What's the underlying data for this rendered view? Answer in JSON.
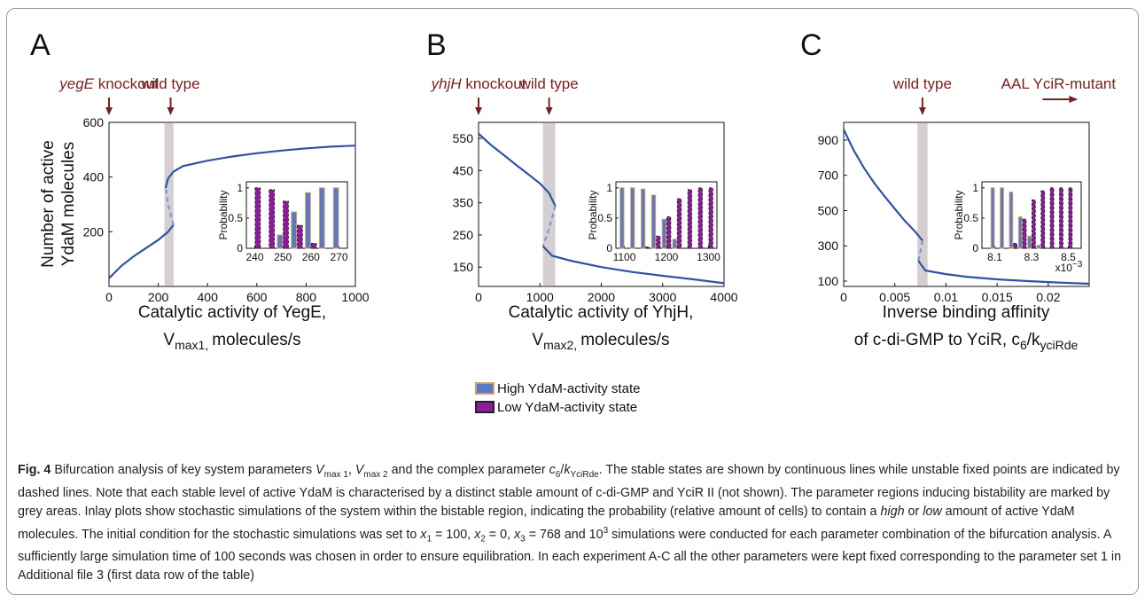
{
  "chart_data": [
    {
      "panel": "A",
      "type": "line",
      "xlabel_line1": "Catalytic activity of YegE,",
      "xlabel_line2_main": "V",
      "xlabel_line2_sub": "max1,",
      "xlabel_line2_rest": "molecules/s",
      "ylabel_line1": "Number of active",
      "ylabel_line2": "YdaM molecules",
      "xlim": [
        0,
        1000
      ],
      "ylim": [
        0,
        600
      ],
      "xticks": [
        0,
        200,
        400,
        600,
        800,
        1000
      ],
      "yticks": [
        200,
        400,
        600
      ],
      "bistable_region": [
        225,
        262
      ],
      "annotations": [
        {
          "text_italic": "yegE",
          "text": " knockout",
          "x": 0
        },
        {
          "text_italic": "",
          "text": "wild type",
          "x": 250
        }
      ],
      "series": [
        {
          "style": "stable",
          "x": [
            0,
            50,
            100,
            150,
            200,
            240,
            262
          ],
          "y": [
            30,
            75,
            110,
            140,
            170,
            200,
            225
          ]
        },
        {
          "style": "unstable",
          "x": [
            262,
            240,
            230
          ],
          "y": [
            225,
            300,
            360
          ]
        },
        {
          "style": "stable",
          "x": [
            230,
            240,
            262,
            300,
            400,
            500,
            600,
            700,
            800,
            900,
            1000
          ],
          "y": [
            360,
            395,
            420,
            440,
            460,
            475,
            487,
            497,
            505,
            511,
            515
          ]
        }
      ],
      "inset": {
        "ylabel": "Probability",
        "xlim": [
          237,
          273
        ],
        "ylim": [
          0,
          1.1
        ],
        "xticks": [
          240,
          250,
          260,
          270
        ],
        "yticks": [
          0,
          0.5,
          1
        ],
        "ytick_labels": [
          "0",
          "0.5",
          "1"
        ],
        "categories": [
          240,
          245,
          250,
          255,
          260,
          265,
          270
        ],
        "high_values": [
          0.0,
          0.0,
          0.22,
          0.6,
          0.92,
          1.0,
          1.0
        ],
        "low_values": [
          1.0,
          0.97,
          0.78,
          0.38,
          0.08,
          0.0,
          0.0
        ]
      }
    },
    {
      "panel": "B",
      "type": "line",
      "xlabel_line1": "Catalytic activity of YhjH,",
      "xlabel_line2_main": "V",
      "xlabel_line2_sub": "max2,",
      "xlabel_line2_rest": "molecules/s",
      "xlim": [
        0,
        4000
      ],
      "ylim": [
        90,
        600
      ],
      "xticks": [
        0,
        1000,
        2000,
        3000,
        4000
      ],
      "yticks": [
        150,
        250,
        350,
        450,
        550
      ],
      "bistable_region": [
        1050,
        1250
      ],
      "annotations": [
        {
          "text_italic": "yhjH",
          "text": " knockout",
          "x": 0
        },
        {
          "text_italic": "",
          "text": "wild type",
          "x": 1150
        }
      ],
      "series": [
        {
          "style": "stable",
          "x": [
            0,
            200,
            400,
            600,
            800,
            1000,
            1150,
            1250
          ],
          "y": [
            565,
            530,
            500,
            470,
            440,
            410,
            380,
            340
          ]
        },
        {
          "style": "unstable",
          "x": [
            1250,
            1150,
            1050
          ],
          "y": [
            340,
            270,
            215
          ]
        },
        {
          "style": "stable",
          "x": [
            1050,
            1200,
            1500,
            2000,
            2500,
            3000,
            3500,
            4000
          ],
          "y": [
            215,
            185,
            170,
            150,
            135,
            123,
            112,
            100
          ]
        }
      ],
      "inset": {
        "ylabel": "Probability",
        "xlim": [
          1080,
          1320
        ],
        "ylim": [
          0,
          1.1
        ],
        "xticks": [
          1100,
          1200,
          1300
        ],
        "yticks": [
          0,
          0.5,
          1
        ],
        "ytick_labels": [
          "0",
          "0.5",
          "1"
        ],
        "categories": [
          1100,
          1125,
          1150,
          1175,
          1200,
          1225,
          1250,
          1275,
          1300
        ],
        "high_values": [
          1.0,
          1.0,
          0.98,
          0.88,
          0.48,
          0.15,
          0.0,
          0.0,
          0.0
        ],
        "low_values": [
          0.0,
          0.0,
          0.02,
          0.2,
          0.52,
          0.82,
          0.97,
          1.0,
          1.0
        ]
      }
    },
    {
      "panel": "C",
      "type": "line",
      "xlabel_line1": "Inverse binding affinity",
      "xlabel_line2_main": "of c-di-GMP to YciR, c",
      "xlabel_line2_sub": "6",
      "xlabel_line2_rest": "/k",
      "xlabel_line2_sub2": "yciRde",
      "xlim": [
        0,
        0.024
      ],
      "ylim": [
        70,
        1000
      ],
      "xticks": [
        0,
        0.005,
        0.01,
        0.015,
        0.02
      ],
      "xtick_labels": [
        "0",
        "0.005",
        "0.01",
        "0.015",
        "0.02"
      ],
      "yticks": [
        100,
        300,
        500,
        700,
        900
      ],
      "bistable_region": [
        0.0072,
        0.0082
      ],
      "annotations": [
        {
          "text_italic": "",
          "text": "wild type",
          "x": 0.0077
        },
        {
          "text_italic": "",
          "text": "AAL YciR-mutant",
          "x": 0.021
        }
      ],
      "series": [
        {
          "style": "stable",
          "x": [
            0,
            0.001,
            0.002,
            0.003,
            0.004,
            0.005,
            0.006,
            0.007,
            0.0077
          ],
          "y": [
            960,
            840,
            740,
            655,
            580,
            510,
            440,
            380,
            330
          ]
        },
        {
          "style": "unstable",
          "x": [
            0.0077,
            0.0075,
            0.0073
          ],
          "y": [
            330,
            270,
            215
          ]
        },
        {
          "style": "stable",
          "x": [
            0.0073,
            0.008,
            0.01,
            0.012,
            0.015,
            0.018,
            0.021,
            0.024
          ],
          "y": [
            215,
            160,
            140,
            125,
            110,
            100,
            92,
            85
          ]
        }
      ],
      "inset": {
        "ylabel": "Probability",
        "xlim": [
          8.03,
          8.57
        ],
        "ylim": [
          0,
          1.1
        ],
        "xticks": [
          8.1,
          8.3,
          8.5
        ],
        "xtick_labels": [
          "8.1",
          "8.3",
          "8.5"
        ],
        "yticks": [
          0,
          0.5,
          1
        ],
        "ytick_labels": [
          "0",
          "0.5",
          "1"
        ],
        "exponent_label": "x10",
        "exponent_sup": "−3",
        "categories": [
          8.1,
          8.15,
          8.2,
          8.25,
          8.3,
          8.35,
          8.4,
          8.45,
          8.5
        ],
        "high_values": [
          1.0,
          1.0,
          0.93,
          0.52,
          0.2,
          0.05,
          0.0,
          0.0,
          0.0
        ],
        "low_values": [
          0.0,
          0.0,
          0.08,
          0.48,
          0.8,
          0.95,
          1.0,
          1.0,
          1.0
        ]
      }
    }
  ],
  "legend": {
    "high_label": "High YdaM-activity state",
    "low_label": "Low YdaM-activity state"
  },
  "colors": {
    "line": "#2f52a8",
    "unstable": "#7f95cf",
    "grey_region": "#d5cfcf",
    "high_bar": "#5b78c2",
    "low_bar": "#8e1a9c",
    "bar_edge": "#cfa06a",
    "annotation": "#7a2020"
  },
  "caption": {
    "fig_label": "Fig. 4",
    "seg1": " Bifurcation analysis of key system parameters ",
    "v1_main": "V",
    "v1_sub": "max 1",
    "seg2": ", ",
    "v2_main": "V",
    "v2_sub": "max 2",
    "seg3": " and the complex parameter ",
    "c_main": "c",
    "c_sub": "6",
    "c_mid": "/",
    "k_main": "k",
    "k_sub": "YciRde",
    "seg4": ". The stable states are shown by continuous lines while unstable fixed points are indicated by dashed lines. Note that each stable level of active YdaM is characterised by a distinct stable amount of c-di-GMP and YciR II (not shown). The parameter regions inducing bistability are marked by grey areas. Inlay plots show stochastic simulations of the system within the bistable region, indicating the probability (relative amount of cells) to contain a ",
    "high_it": "high",
    "seg5": " or ",
    "low_it": "low",
    "seg6": " amount of active YdaM molecules. The initial condition for the stochastic simulations was set to ",
    "x1": "x",
    "x1_sub": "1",
    "eq1": " = 100, ",
    "x2": "x",
    "x2_sub": "2",
    "eq2": " = 0, ",
    "x3": "x",
    "x3_sub": "3",
    "eq3": " = 768 and 10",
    "exp": "3",
    "seg7": " simulations were conducted for each parameter combination of the bifurcation analysis. A sufficiently large simulation time of 100 seconds was chosen in order to ensure equilibration. In each experiment A-C all the other parameters were kept fixed corresponding to the parameter set 1 in Additional file 3 (first data row of the table)"
  }
}
